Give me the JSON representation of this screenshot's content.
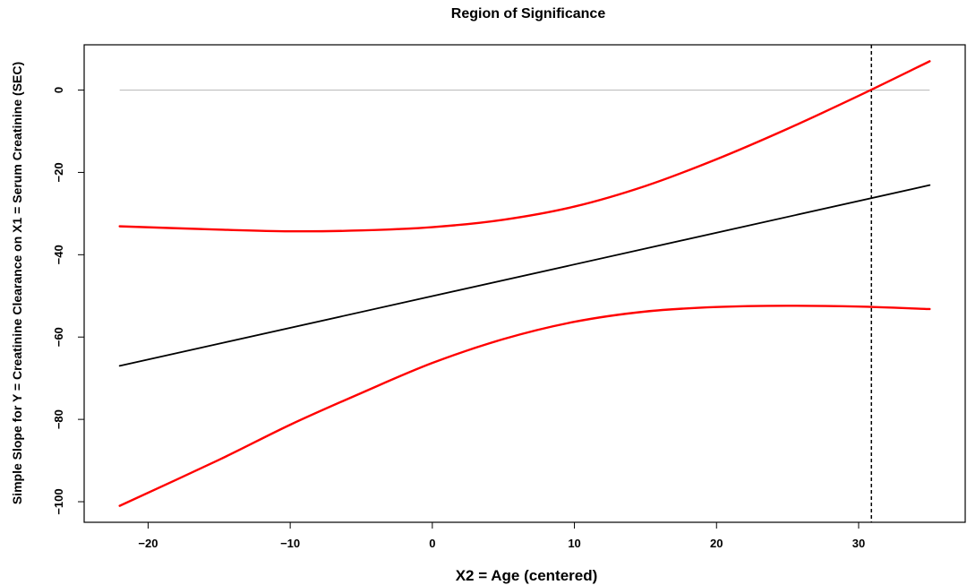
{
  "chart_data": {
    "type": "line",
    "title": "Region of Significance",
    "xlabel": "X2 = Age (centered)",
    "ylabel": "Simple Slope for Y = Creatinine Clearance on X1 = Serum Creatinine (SEC)",
    "xlim": [
      -24.5,
      37.5
    ],
    "ylim": [
      -105,
      11
    ],
    "x_ticks": [
      -20,
      -10,
      0,
      10,
      20,
      30
    ],
    "x_tick_labels": [
      "−20",
      "−10",
      "0",
      "10",
      "20",
      "30"
    ],
    "y_ticks": [
      0,
      -20,
      -40,
      -60,
      -80,
      -100
    ],
    "y_tick_labels": [
      "0",
      "−20",
      "−40",
      "−60",
      "−80",
      "−100"
    ],
    "grid": false,
    "reference_line": {
      "y": 0,
      "color": "#bfbfbf"
    },
    "vertical_line": {
      "x": 30.9,
      "style": "dashed",
      "color": "#000000"
    },
    "series": [
      {
        "role": "simple-slope",
        "color": "#000000",
        "x": [
          -22,
          35
        ],
        "y": [
          -67,
          -23.1
        ]
      },
      {
        "role": "upper-confidence-band",
        "color": "#ff0000",
        "x": [
          -22,
          -15,
          -10,
          -5,
          0,
          5,
          10,
          15,
          20,
          25,
          30,
          35
        ],
        "y": [
          -33.1,
          -33.9,
          -34.3,
          -34.1,
          -33.3,
          -31.5,
          -28.3,
          -23.3,
          -16.8,
          -9.4,
          -1.4,
          7.0
        ]
      },
      {
        "role": "lower-confidence-band",
        "color": "#ff0000",
        "x": [
          -22,
          -15,
          -10,
          -5,
          0,
          5,
          10,
          15,
          20,
          25,
          30,
          35
        ],
        "y": [
          -101,
          -89.8,
          -81.3,
          -73.6,
          -66.3,
          -60.5,
          -56.3,
          -53.8,
          -52.7,
          -52.4,
          -52.6,
          -53.2
        ]
      }
    ]
  }
}
